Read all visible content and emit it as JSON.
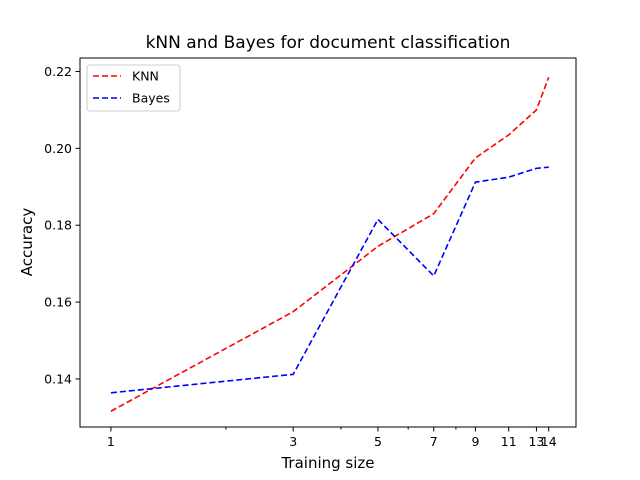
{
  "chart_data": {
    "type": "line",
    "title": "kNN and Bayes for document classification",
    "xlabel": "Training size",
    "ylabel": "Accuracy",
    "xscale": "log",
    "xlim": [
      0.83,
      16.5
    ],
    "ylim": [
      0.1275,
      0.2235
    ],
    "x": [
      1,
      3,
      5,
      7,
      9,
      11,
      13,
      14
    ],
    "xticks": [
      {
        "value": 1,
        "label": "1"
      },
      {
        "value": 3,
        "label": "3"
      },
      {
        "value": 5,
        "label": "5"
      },
      {
        "value": 7,
        "label": "7"
      },
      {
        "value": 9,
        "label": "9"
      },
      {
        "value": 11,
        "label": "11"
      },
      {
        "value": 13,
        "label": "13"
      },
      {
        "value": 14,
        "label": "14"
      }
    ],
    "xminorticks": [
      2,
      4,
      6,
      8
    ],
    "yticks": [
      {
        "value": 0.14,
        "label": "0.14"
      },
      {
        "value": 0.16,
        "label": "0.16"
      },
      {
        "value": 0.18,
        "label": "0.18"
      },
      {
        "value": 0.2,
        "label": "0.20"
      },
      {
        "value": 0.22,
        "label": "0.22"
      }
    ],
    "grid": false,
    "legend_position": "top-left",
    "series": [
      {
        "name": "KNN",
        "color": "#ff0000",
        "linestyle": "dashed",
        "values": [
          0.1316,
          0.1575,
          0.1745,
          0.183,
          0.1975,
          0.2035,
          0.21,
          0.2185
        ]
      },
      {
        "name": "Bayes",
        "color": "#0000ff",
        "linestyle": "dashed",
        "values": [
          0.1364,
          0.1412,
          0.1815,
          0.1668,
          0.1912,
          0.1925,
          0.1948,
          0.1951
        ]
      }
    ]
  }
}
